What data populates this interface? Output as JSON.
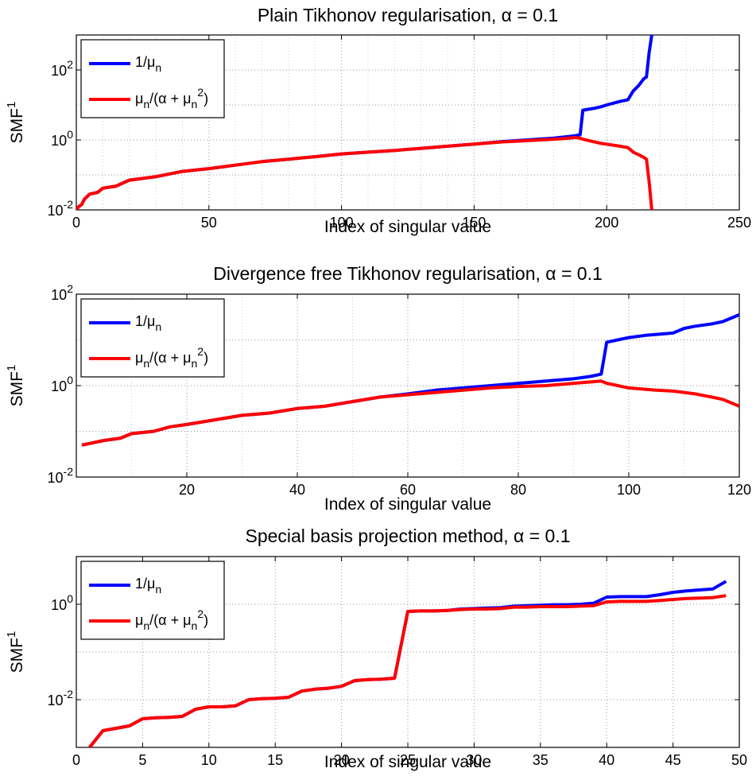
{
  "chart_data": [
    {
      "type": "line",
      "title": "Plain Tikhonov regularisation, α = 0.1",
      "xlabel": "Index of singular value",
      "ylabel": "SMF",
      "ylabel_sup": "1",
      "yscale": "log",
      "xlim": [
        0,
        250
      ],
      "ylim_log10": [
        -2,
        3
      ],
      "xticks": [
        "0",
        "50",
        "100",
        "150",
        "200",
        "250"
      ],
      "yticks": [
        {
          "base": "10",
          "exp": "-2"
        },
        {
          "base": "10",
          "exp": "0"
        },
        {
          "base": "10",
          "exp": "2"
        }
      ],
      "legend_position": "top-left",
      "grid": true,
      "series": [
        {
          "name": "1/μn",
          "color": "#0000ff",
          "x": [
            0,
            1,
            2,
            3,
            5,
            8,
            10,
            15,
            20,
            30,
            40,
            50,
            60,
            70,
            80,
            90,
            100,
            110,
            120,
            130,
            140,
            150,
            160,
            170,
            180,
            186,
            188,
            190,
            191,
            195,
            198,
            200,
            205,
            208,
            210,
            212,
            214,
            215,
            216,
            217
          ],
          "y": [
            -2.0,
            -1.9,
            -1.85,
            -1.7,
            -1.55,
            -1.5,
            -1.38,
            -1.32,
            -1.15,
            -1.05,
            -0.9,
            -0.82,
            -0.72,
            -0.62,
            -0.55,
            -0.48,
            -0.4,
            -0.35,
            -0.3,
            -0.24,
            -0.18,
            -0.12,
            -0.05,
            0.0,
            0.05,
            0.1,
            0.12,
            0.15,
            0.85,
            0.9,
            0.95,
            1.0,
            1.1,
            1.15,
            1.4,
            1.55,
            1.75,
            1.8,
            2.5,
            3.0
          ]
        },
        {
          "name": "μn/(α + μn2)",
          "color": "#ff0000",
          "x": [
            0,
            1,
            2,
            3,
            5,
            8,
            10,
            15,
            20,
            30,
            40,
            50,
            60,
            70,
            80,
            90,
            100,
            110,
            120,
            130,
            140,
            150,
            160,
            170,
            180,
            186,
            188,
            190,
            191,
            195,
            198,
            200,
            205,
            208,
            210,
            212,
            214,
            215,
            216,
            217
          ],
          "y": [
            -2.0,
            -1.9,
            -1.85,
            -1.7,
            -1.55,
            -1.5,
            -1.38,
            -1.32,
            -1.15,
            -1.05,
            -0.9,
            -0.82,
            -0.72,
            -0.62,
            -0.55,
            -0.48,
            -0.4,
            -0.35,
            -0.3,
            -0.24,
            -0.18,
            -0.12,
            -0.06,
            -0.02,
            0.02,
            0.05,
            0.07,
            0.05,
            0.02,
            -0.05,
            -0.1,
            -0.12,
            -0.18,
            -0.22,
            -0.35,
            -0.42,
            -0.5,
            -0.55,
            -1.2,
            -2.0
          ]
        }
      ]
    },
    {
      "type": "line",
      "title": "Divergence free Tikhonov regularisation, α = 0.1",
      "xlabel": "Index of singular value",
      "ylabel": "SMF",
      "ylabel_sup": "1",
      "yscale": "log",
      "xlim": [
        0,
        120
      ],
      "ylim_log10": [
        -2,
        2
      ],
      "xticks": [
        "20",
        "40",
        "60",
        "80",
        "100",
        "120"
      ],
      "yticks": [
        {
          "base": "10",
          "exp": "-2"
        },
        {
          "base": "10",
          "exp": "0"
        },
        {
          "base": "10",
          "exp": "2"
        }
      ],
      "legend_position": "top-left",
      "grid": true,
      "series": [
        {
          "name": "1/μn",
          "color": "#0000ff",
          "x": [
            1,
            3,
            5,
            8,
            10,
            14,
            17,
            20,
            25,
            30,
            35,
            40,
            45,
            50,
            55,
            60,
            65,
            70,
            75,
            80,
            85,
            90,
            93,
            95,
            96,
            98,
            100,
            103,
            105,
            108,
            110,
            112,
            115,
            117,
            118,
            120
          ],
          "y": [
            -1.3,
            -1.25,
            -1.2,
            -1.15,
            -1.05,
            -1.0,
            -0.9,
            -0.85,
            -0.75,
            -0.65,
            -0.6,
            -0.5,
            -0.45,
            -0.35,
            -0.25,
            -0.18,
            -0.1,
            -0.05,
            0.0,
            0.05,
            0.1,
            0.15,
            0.2,
            0.25,
            0.95,
            1.0,
            1.05,
            1.1,
            1.12,
            1.15,
            1.25,
            1.3,
            1.35,
            1.4,
            1.45,
            1.55
          ]
        },
        {
          "name": "μn/(α + μn2)",
          "color": "#ff0000",
          "x": [
            1,
            3,
            5,
            8,
            10,
            14,
            17,
            20,
            25,
            30,
            35,
            40,
            45,
            50,
            55,
            60,
            65,
            70,
            75,
            80,
            85,
            90,
            93,
            95,
            96,
            98,
            100,
            103,
            105,
            108,
            110,
            112,
            115,
            117,
            118,
            120
          ],
          "y": [
            -1.3,
            -1.25,
            -1.2,
            -1.15,
            -1.05,
            -1.0,
            -0.9,
            -0.85,
            -0.75,
            -0.65,
            -0.6,
            -0.5,
            -0.45,
            -0.35,
            -0.25,
            -0.2,
            -0.15,
            -0.1,
            -0.05,
            -0.02,
            0.0,
            0.05,
            0.08,
            0.1,
            0.05,
            0.0,
            -0.05,
            -0.08,
            -0.1,
            -0.12,
            -0.15,
            -0.18,
            -0.25,
            -0.3,
            -0.35,
            -0.45
          ]
        }
      ]
    },
    {
      "type": "line",
      "title": "Special basis projection method, α = 0.1",
      "xlabel": "Index of singular value",
      "ylabel": "SMF",
      "ylabel_sup": "1",
      "yscale": "log",
      "xlim": [
        0,
        50
      ],
      "ylim_log10": [
        -3,
        1
      ],
      "xticks": [
        "0",
        "5",
        "10",
        "15",
        "20",
        "25",
        "30",
        "35",
        "40",
        "45",
        "50"
      ],
      "yticks": [
        {
          "base": "10",
          "exp": "-2"
        },
        {
          "base": "10",
          "exp": "0"
        }
      ],
      "legend_position": "top-left",
      "grid": true,
      "series": [
        {
          "name": "1/μn",
          "color": "#0000ff",
          "x": [
            1,
            2,
            3,
            4,
            5,
            6,
            7,
            8,
            9,
            10,
            11,
            12,
            13,
            14,
            15,
            16,
            17,
            18,
            19,
            20,
            21,
            22,
            23,
            24,
            25,
            26,
            27,
            28,
            29,
            30,
            31,
            32,
            33,
            34,
            35,
            36,
            37,
            38,
            39,
            40,
            41,
            42,
            43,
            44,
            45,
            46,
            47,
            48,
            49
          ],
          "y": [
            -3.0,
            -2.65,
            -2.6,
            -2.55,
            -2.4,
            -2.38,
            -2.37,
            -2.35,
            -2.2,
            -2.15,
            -2.15,
            -2.13,
            -2.0,
            -1.98,
            -1.97,
            -1.95,
            -1.82,
            -1.78,
            -1.76,
            -1.72,
            -1.6,
            -1.58,
            -1.57,
            -1.55,
            -0.15,
            -0.14,
            -0.14,
            -0.13,
            -0.1,
            -0.09,
            -0.08,
            -0.07,
            -0.04,
            -0.03,
            -0.02,
            -0.01,
            -0.01,
            0.0,
            0.02,
            0.15,
            0.16,
            0.16,
            0.16,
            0.2,
            0.25,
            0.28,
            0.3,
            0.32,
            0.48
          ]
        },
        {
          "name": "μn/(α + μn2)",
          "color": "#ff0000",
          "x": [
            1,
            2,
            3,
            4,
            5,
            6,
            7,
            8,
            9,
            10,
            11,
            12,
            13,
            14,
            15,
            16,
            17,
            18,
            19,
            20,
            21,
            22,
            23,
            24,
            25,
            26,
            27,
            28,
            29,
            30,
            31,
            32,
            33,
            34,
            35,
            36,
            37,
            38,
            39,
            40,
            41,
            42,
            43,
            44,
            45,
            46,
            47,
            48,
            49
          ],
          "y": [
            -3.0,
            -2.65,
            -2.6,
            -2.55,
            -2.4,
            -2.38,
            -2.37,
            -2.35,
            -2.2,
            -2.15,
            -2.15,
            -2.13,
            -2.0,
            -1.98,
            -1.97,
            -1.95,
            -1.82,
            -1.78,
            -1.76,
            -1.72,
            -1.6,
            -1.58,
            -1.57,
            -1.55,
            -0.15,
            -0.14,
            -0.14,
            -0.13,
            -0.11,
            -0.1,
            -0.1,
            -0.09,
            -0.06,
            -0.06,
            -0.05,
            -0.05,
            -0.05,
            -0.04,
            -0.03,
            0.05,
            0.06,
            0.06,
            0.06,
            0.08,
            0.1,
            0.12,
            0.13,
            0.14,
            0.18
          ]
        }
      ]
    }
  ]
}
